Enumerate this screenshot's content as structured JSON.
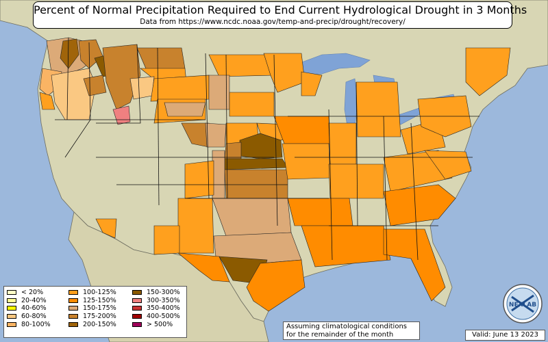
{
  "title": "Percent of Normal Precipitation Required to End Current Hydrological Drought in 3 Months",
  "subtitle": "Data from https://www.ncdc.noaa.gov/temp-and-precip/drought/recovery/",
  "legend": {
    "items": [
      {
        "label": "< 20%",
        "color": "#ffffc8"
      },
      {
        "label": "20-40%",
        "color": "#ffff96"
      },
      {
        "label": "40-60%",
        "color": "#ffff00"
      },
      {
        "label": "60-80%",
        "color": "#fac882"
      },
      {
        "label": "80-100%",
        "color": "#fab464"
      },
      {
        "label": "100-125%",
        "color": "#ffa01e"
      },
      {
        "label": "125-150%",
        "color": "#ff8c00"
      },
      {
        "label": "150-175%",
        "color": "#dcaa78"
      },
      {
        "label": "175-200%",
        "color": "#c8822d"
      },
      {
        "label": "200-150%",
        "color": "#a0640a"
      },
      {
        "label": "150-300%",
        "color": "#8b5a00"
      },
      {
        "label": "300-350%",
        "color": "#f08080"
      },
      {
        "label": "350-400%",
        "color": "#c83232"
      },
      {
        "label": "400-500%",
        "color": "#a00000"
      },
      {
        "label": "> 500%",
        "color": "#a0005a"
      }
    ]
  },
  "note": {
    "line1": "Assuming climatological conditions",
    "line2": "for the remainder of the month"
  },
  "valid": "Valid: June 13 2023",
  "logo": {
    "text": "NEXLAB",
    "icon": "nexlab-logo-icon"
  },
  "colors": {
    "ocean": "#9cb8dc",
    "land": "#d9d7b8",
    "lake": "#7fa3d6"
  }
}
